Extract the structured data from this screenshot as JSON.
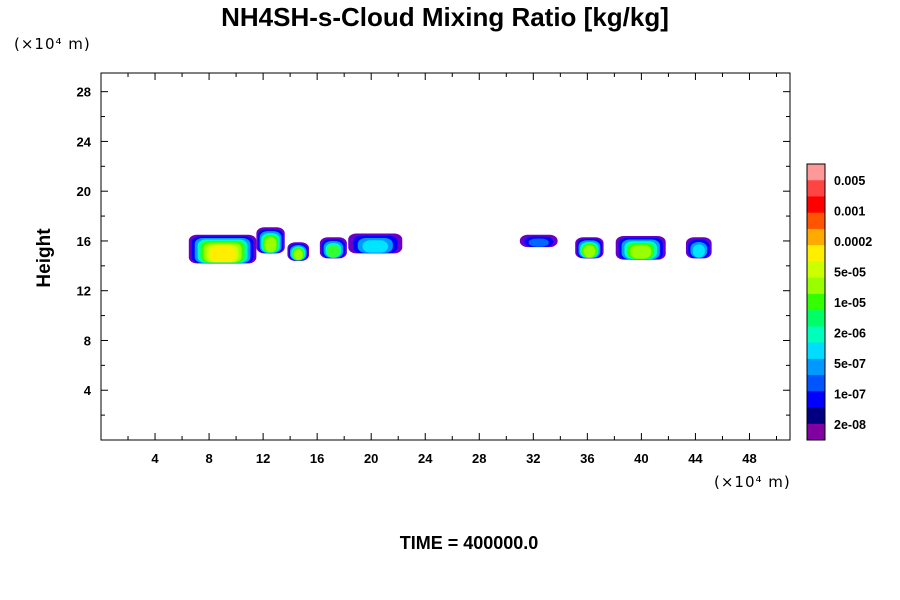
{
  "chart_data": {
    "type": "heatmap",
    "title": "NH4SH-s-Cloud Mixing Ratio [kg/kg]",
    "ylabel": "Height",
    "xlabel": "",
    "y_unit": "(×10⁴ m)",
    "x_unit": "(×10⁴ m)",
    "time_label": "TIME = 400000.0",
    "xlim": [
      0,
      51
    ],
    "ylim": [
      0,
      29.5
    ],
    "x_ticks": [
      4,
      8,
      12,
      16,
      20,
      24,
      28,
      32,
      36,
      40,
      44,
      48
    ],
    "y_ticks": [
      4,
      8,
      12,
      16,
      20,
      24,
      28
    ],
    "grid": false,
    "legend_position": "right",
    "colorbar": {
      "colors": [
        "#8000a0",
        "#000080",
        "#0000ff",
        "#0055ff",
        "#0099ff",
        "#00ddff",
        "#00ffbb",
        "#00ff66",
        "#33ff00",
        "#99ff00",
        "#ccff00",
        "#ffee00",
        "#ffaa00",
        "#ff5500",
        "#ff0000",
        "#ff4444",
        "#ff9999"
      ],
      "labels": [
        "2e-08",
        "1e-07",
        "5e-07",
        "2e-06",
        "1e-05",
        "5e-05",
        "0.0002",
        "0.001",
        "0.005"
      ]
    },
    "cloud_regions": [
      {
        "x_range": [
          6.5,
          11.5
        ],
        "y_range": [
          14.2,
          16.5
        ],
        "peak": "0.0002"
      },
      {
        "x_range": [
          11.5,
          13.6
        ],
        "y_range": [
          15.0,
          17.1
        ],
        "peak": "5e-05"
      },
      {
        "x_range": [
          13.8,
          15.4
        ],
        "y_range": [
          14.4,
          15.9
        ],
        "peak": "5e-05"
      },
      {
        "x_range": [
          16.2,
          18.2
        ],
        "y_range": [
          14.6,
          16.3
        ],
        "peak": "1e-05"
      },
      {
        "x_range": [
          18.3,
          22.3
        ],
        "y_range": [
          15.0,
          16.6
        ],
        "peak": "2e-06"
      },
      {
        "x_range": [
          31.0,
          33.8
        ],
        "y_range": [
          15.5,
          16.5
        ],
        "peak": "5e-07"
      },
      {
        "x_range": [
          35.1,
          37.2
        ],
        "y_range": [
          14.6,
          16.3
        ],
        "peak": "5e-05"
      },
      {
        "x_range": [
          38.1,
          41.8
        ],
        "y_range": [
          14.5,
          16.4
        ],
        "peak": "5e-05"
      },
      {
        "x_range": [
          43.3,
          45.2
        ],
        "y_range": [
          14.6,
          16.3
        ],
        "peak": "2e-06"
      }
    ]
  }
}
